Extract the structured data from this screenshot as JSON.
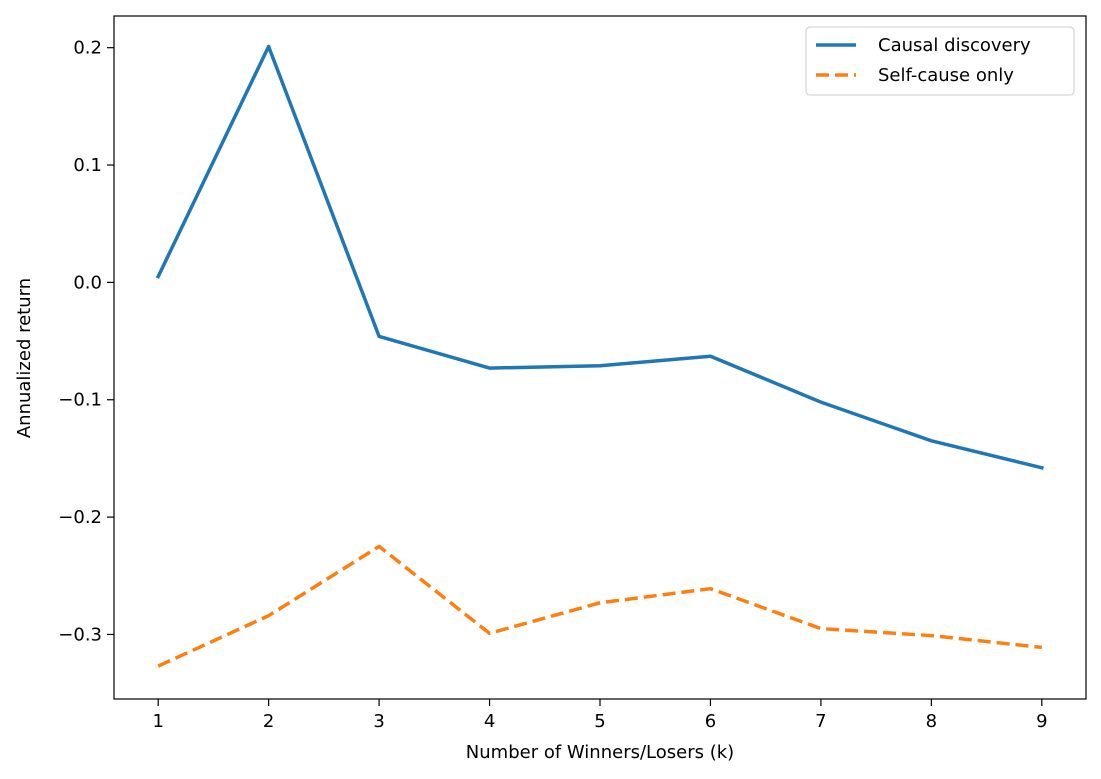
{
  "chart_data": {
    "type": "line",
    "title": "",
    "xlabel": "Number of Winners/Losers (k)",
    "ylabel": "Annualized return",
    "x": [
      1,
      2,
      3,
      4,
      5,
      6,
      7,
      8,
      9
    ],
    "xlim": [
      0.6,
      9.4
    ],
    "ylim": [
      -0.355,
      0.227
    ],
    "xticks": [
      1,
      2,
      3,
      4,
      5,
      6,
      7,
      8,
      9
    ],
    "yticks": [
      -0.3,
      -0.2,
      -0.1,
      0.0,
      0.1,
      0.2
    ],
    "ytick_labels": [
      "−0.3",
      "−0.2",
      "−0.1",
      "0.0",
      "0.1",
      "0.2"
    ],
    "grid": false,
    "legend_position": "top-right",
    "series": [
      {
        "name": "Causal discovery",
        "color": "#1f77b4",
        "style": "solid",
        "values": [
          0.005,
          0.201,
          -0.046,
          -0.073,
          -0.071,
          -0.063,
          -0.102,
          -0.135,
          -0.158
        ]
      },
      {
        "name": "Self-cause only",
        "color": "#ff7f0e",
        "style": "dashed",
        "values": [
          -0.327,
          -0.284,
          -0.225,
          -0.299,
          -0.273,
          -0.261,
          -0.295,
          -0.301,
          -0.311
        ]
      }
    ]
  }
}
